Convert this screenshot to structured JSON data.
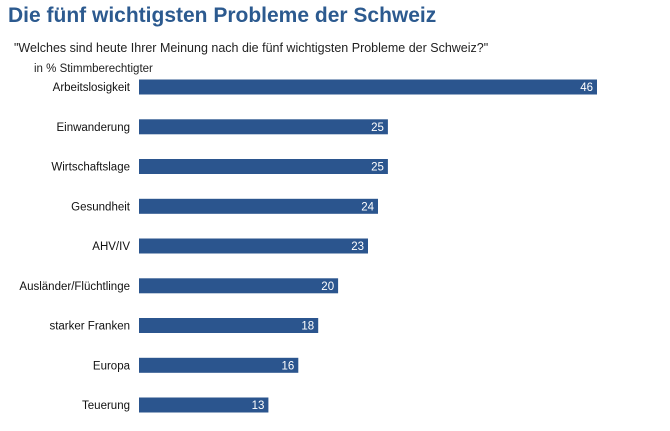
{
  "chart_data": {
    "type": "bar",
    "orientation": "horizontal",
    "title": "Die fünf wichtigsten Probleme der Schweiz",
    "subtitle": "\"Welches sind heute Ihrer Meinung nach die fünf wichtigsten Probleme der Schweiz?\"",
    "unit_label": "in % Stimmberechtigter",
    "categories": [
      "Arbeitslosigkeit",
      "Einwanderung",
      "Wirtschaftslage",
      "Gesundheit",
      "AHV/IV",
      "Ausländer/Flüchtlinge",
      "starker Franken",
      "Europa",
      "Teuerung"
    ],
    "values": [
      46,
      25,
      25,
      24,
      23,
      20,
      18,
      16,
      13
    ],
    "xlabel": "",
    "ylabel": "",
    "xlim": [
      0,
      46
    ],
    "grid": false,
    "legend": "none",
    "bar_color": "#2b558e"
  }
}
